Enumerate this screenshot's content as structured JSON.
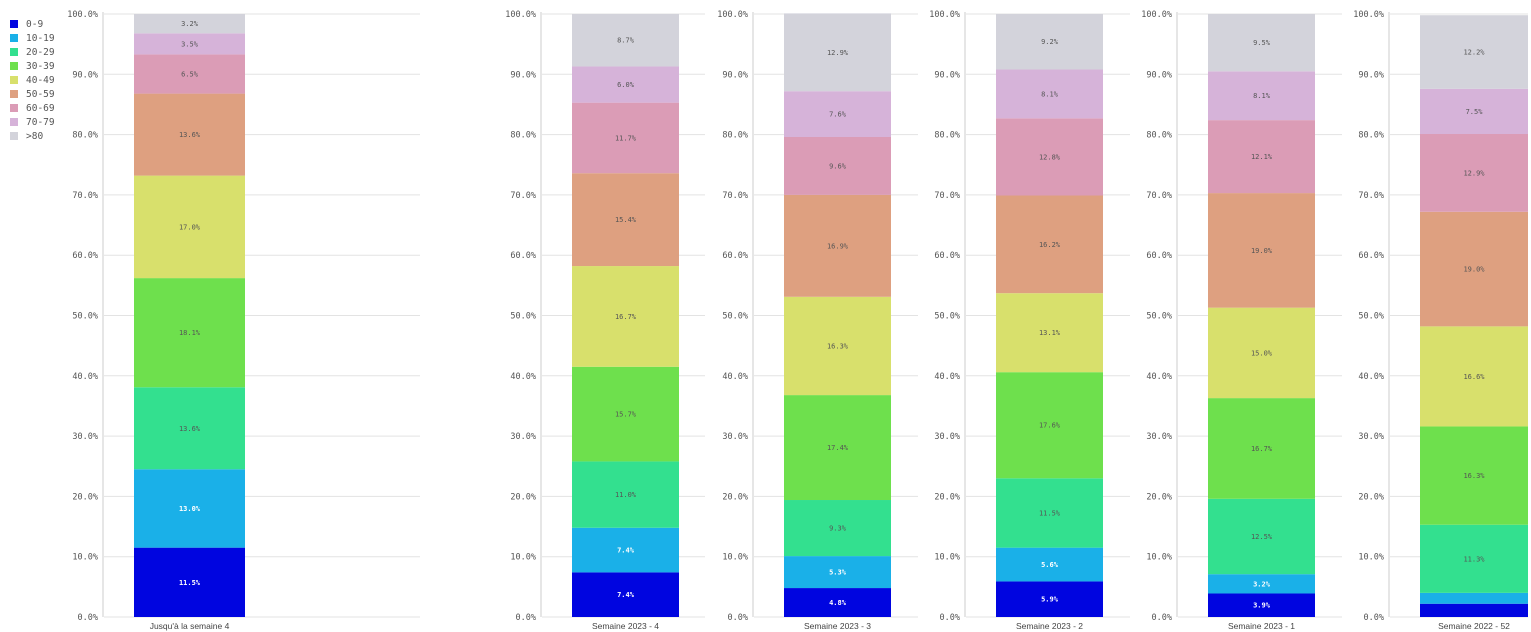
{
  "legend": {
    "items": [
      {
        "label": "0-9",
        "color": "#0005e0"
      },
      {
        "label": "10-19",
        "color": "#1ab0e8"
      },
      {
        "label": "20-29",
        "color": "#33e08f"
      },
      {
        "label": "30-39",
        "color": "#6ee04d"
      },
      {
        "label": "40-49",
        "color": "#d8e06c"
      },
      {
        "label": "50-59",
        "color": "#dea080"
      },
      {
        "label": "60-69",
        "color": "#db9cb6"
      },
      {
        "label": "70-79",
        "color": "#d6b3d9"
      },
      {
        "label": ">80",
        "color": "#d3d3db"
      }
    ]
  },
  "chart_data": [
    {
      "type": "bar",
      "stacked": true,
      "category": "Jusqu'à la semaine 4",
      "ylim": [
        0,
        100
      ],
      "yticks": [
        "0.0%",
        "10.0%",
        "20.0%",
        "30.0%",
        "40.0%",
        "50.0%",
        "60.0%",
        "70.0%",
        "80.0%",
        "90.0%",
        "100.0%"
      ],
      "values": [
        11.5,
        13.0,
        13.6,
        18.1,
        17.0,
        13.6,
        6.5,
        3.5,
        3.2
      ],
      "labels": [
        "11.5%",
        "13.0%",
        "13.6%",
        "18.1%",
        "17.0%",
        "13.6%",
        "6.5%",
        "3.5%",
        "3.2%"
      ]
    },
    {
      "type": "bar",
      "stacked": true,
      "category": "Semaine 2023 - 4",
      "ylim": [
        0,
        100
      ],
      "yticks": [
        "0.0%",
        "10.0%",
        "20.0%",
        "30.0%",
        "40.0%",
        "50.0%",
        "60.0%",
        "70.0%",
        "80.0%",
        "90.0%",
        "100.0%"
      ],
      "values": [
        7.4,
        7.4,
        11.0,
        15.7,
        16.7,
        15.4,
        11.7,
        6.0,
        8.7
      ],
      "labels": [
        "7.4%",
        "7.4%",
        "11.0%",
        "15.7%",
        "16.7%",
        "15.4%",
        "11.7%",
        "6.0%",
        "8.7%"
      ]
    },
    {
      "type": "bar",
      "stacked": true,
      "category": "Semaine 2023 - 3",
      "ylim": [
        0,
        100
      ],
      "yticks": [
        "0.0%",
        "10.0%",
        "20.0%",
        "30.0%",
        "40.0%",
        "50.0%",
        "60.0%",
        "70.0%",
        "80.0%",
        "90.0%",
        "100.0%"
      ],
      "values": [
        4.8,
        5.3,
        9.3,
        17.4,
        16.3,
        16.9,
        9.6,
        7.6,
        12.9
      ],
      "labels": [
        "4.8%",
        "5.3%",
        "9.3%",
        "17.4%",
        "16.3%",
        "16.9%",
        "9.6%",
        "7.6%",
        "12.9%"
      ]
    },
    {
      "type": "bar",
      "stacked": true,
      "category": "Semaine 2023 - 2",
      "ylim": [
        0,
        100
      ],
      "yticks": [
        "0.0%",
        "10.0%",
        "20.0%",
        "30.0%",
        "40.0%",
        "50.0%",
        "60.0%",
        "70.0%",
        "80.0%",
        "90.0%",
        "100.0%"
      ],
      "values": [
        5.9,
        5.6,
        11.5,
        17.6,
        13.1,
        16.2,
        12.8,
        8.1,
        9.2
      ],
      "labels": [
        "5.9%",
        "5.6%",
        "11.5%",
        "17.6%",
        "13.1%",
        "16.2%",
        "12.8%",
        "8.1%",
        "9.2%"
      ]
    },
    {
      "type": "bar",
      "stacked": true,
      "category": "Semaine 2023 - 1",
      "ylim": [
        0,
        100
      ],
      "yticks": [
        "0.0%",
        "10.0%",
        "20.0%",
        "30.0%",
        "40.0%",
        "50.0%",
        "60.0%",
        "70.0%",
        "80.0%",
        "90.0%",
        "100.0%"
      ],
      "values": [
        3.9,
        3.2,
        12.5,
        16.7,
        15.0,
        19.0,
        12.1,
        8.1,
        9.5
      ],
      "labels": [
        "3.9%",
        "3.2%",
        "12.5%",
        "16.7%",
        "15.0%",
        "19.0%",
        "12.1%",
        "8.1%",
        "9.5%"
      ]
    },
    {
      "type": "bar",
      "stacked": true,
      "category": "Semaine 2022 - 52",
      "ylim": [
        0,
        100
      ],
      "yticks": [
        "0.0%",
        "10.0%",
        "20.0%",
        "30.0%",
        "40.0%",
        "50.0%",
        "60.0%",
        "70.0%",
        "80.0%",
        "90.0%",
        "100.0%"
      ],
      "values": [
        2.2,
        1.8,
        11.3,
        16.3,
        16.6,
        19.0,
        12.9,
        7.5,
        12.2
      ],
      "labels": [
        "",
        "",
        "11.3%",
        "16.3%",
        "16.6%",
        "19.0%",
        "12.9%",
        "7.5%",
        "12.2%"
      ]
    }
  ]
}
